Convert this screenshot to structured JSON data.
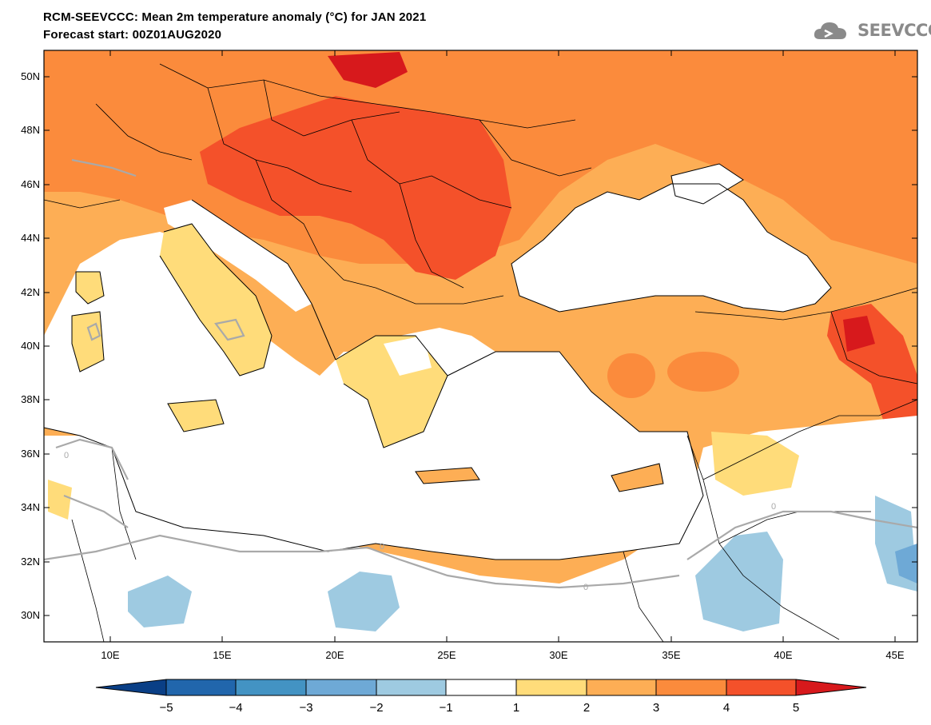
{
  "title_line1": "RCM-SEEVCCC: Mean 2m temperature anomaly (°C) for JAN 2021",
  "title_line2": "Forecast start: 00Z01AUG2020",
  "logo_text": "SEEVCCC",
  "latitudes": [
    "50N",
    "48N",
    "46N",
    "44N",
    "42N",
    "40N",
    "38N",
    "36N",
    "34N",
    "32N",
    "30N"
  ],
  "longitudes": [
    "10E",
    "15E",
    "20E",
    "25E",
    "30E",
    "35E",
    "40E",
    "45E"
  ],
  "contour_label": "0",
  "colorbar": {
    "ticks": [
      "−5",
      "−4",
      "−3",
      "−2",
      "−1",
      "1",
      "2",
      "3",
      "4",
      "5"
    ],
    "colors": [
      "#0a3f86",
      "#2166ac",
      "#4393c3",
      "#6ea9d6",
      "#9ecae1",
      "#ffffff",
      "#ffdc7a",
      "#fdae55",
      "#fb8b3c",
      "#f4512a",
      "#d7191c"
    ]
  },
  "map_colors": {
    "sea": "#ffffff",
    "border": "#000000",
    "contour": "#a9a9a9"
  }
}
